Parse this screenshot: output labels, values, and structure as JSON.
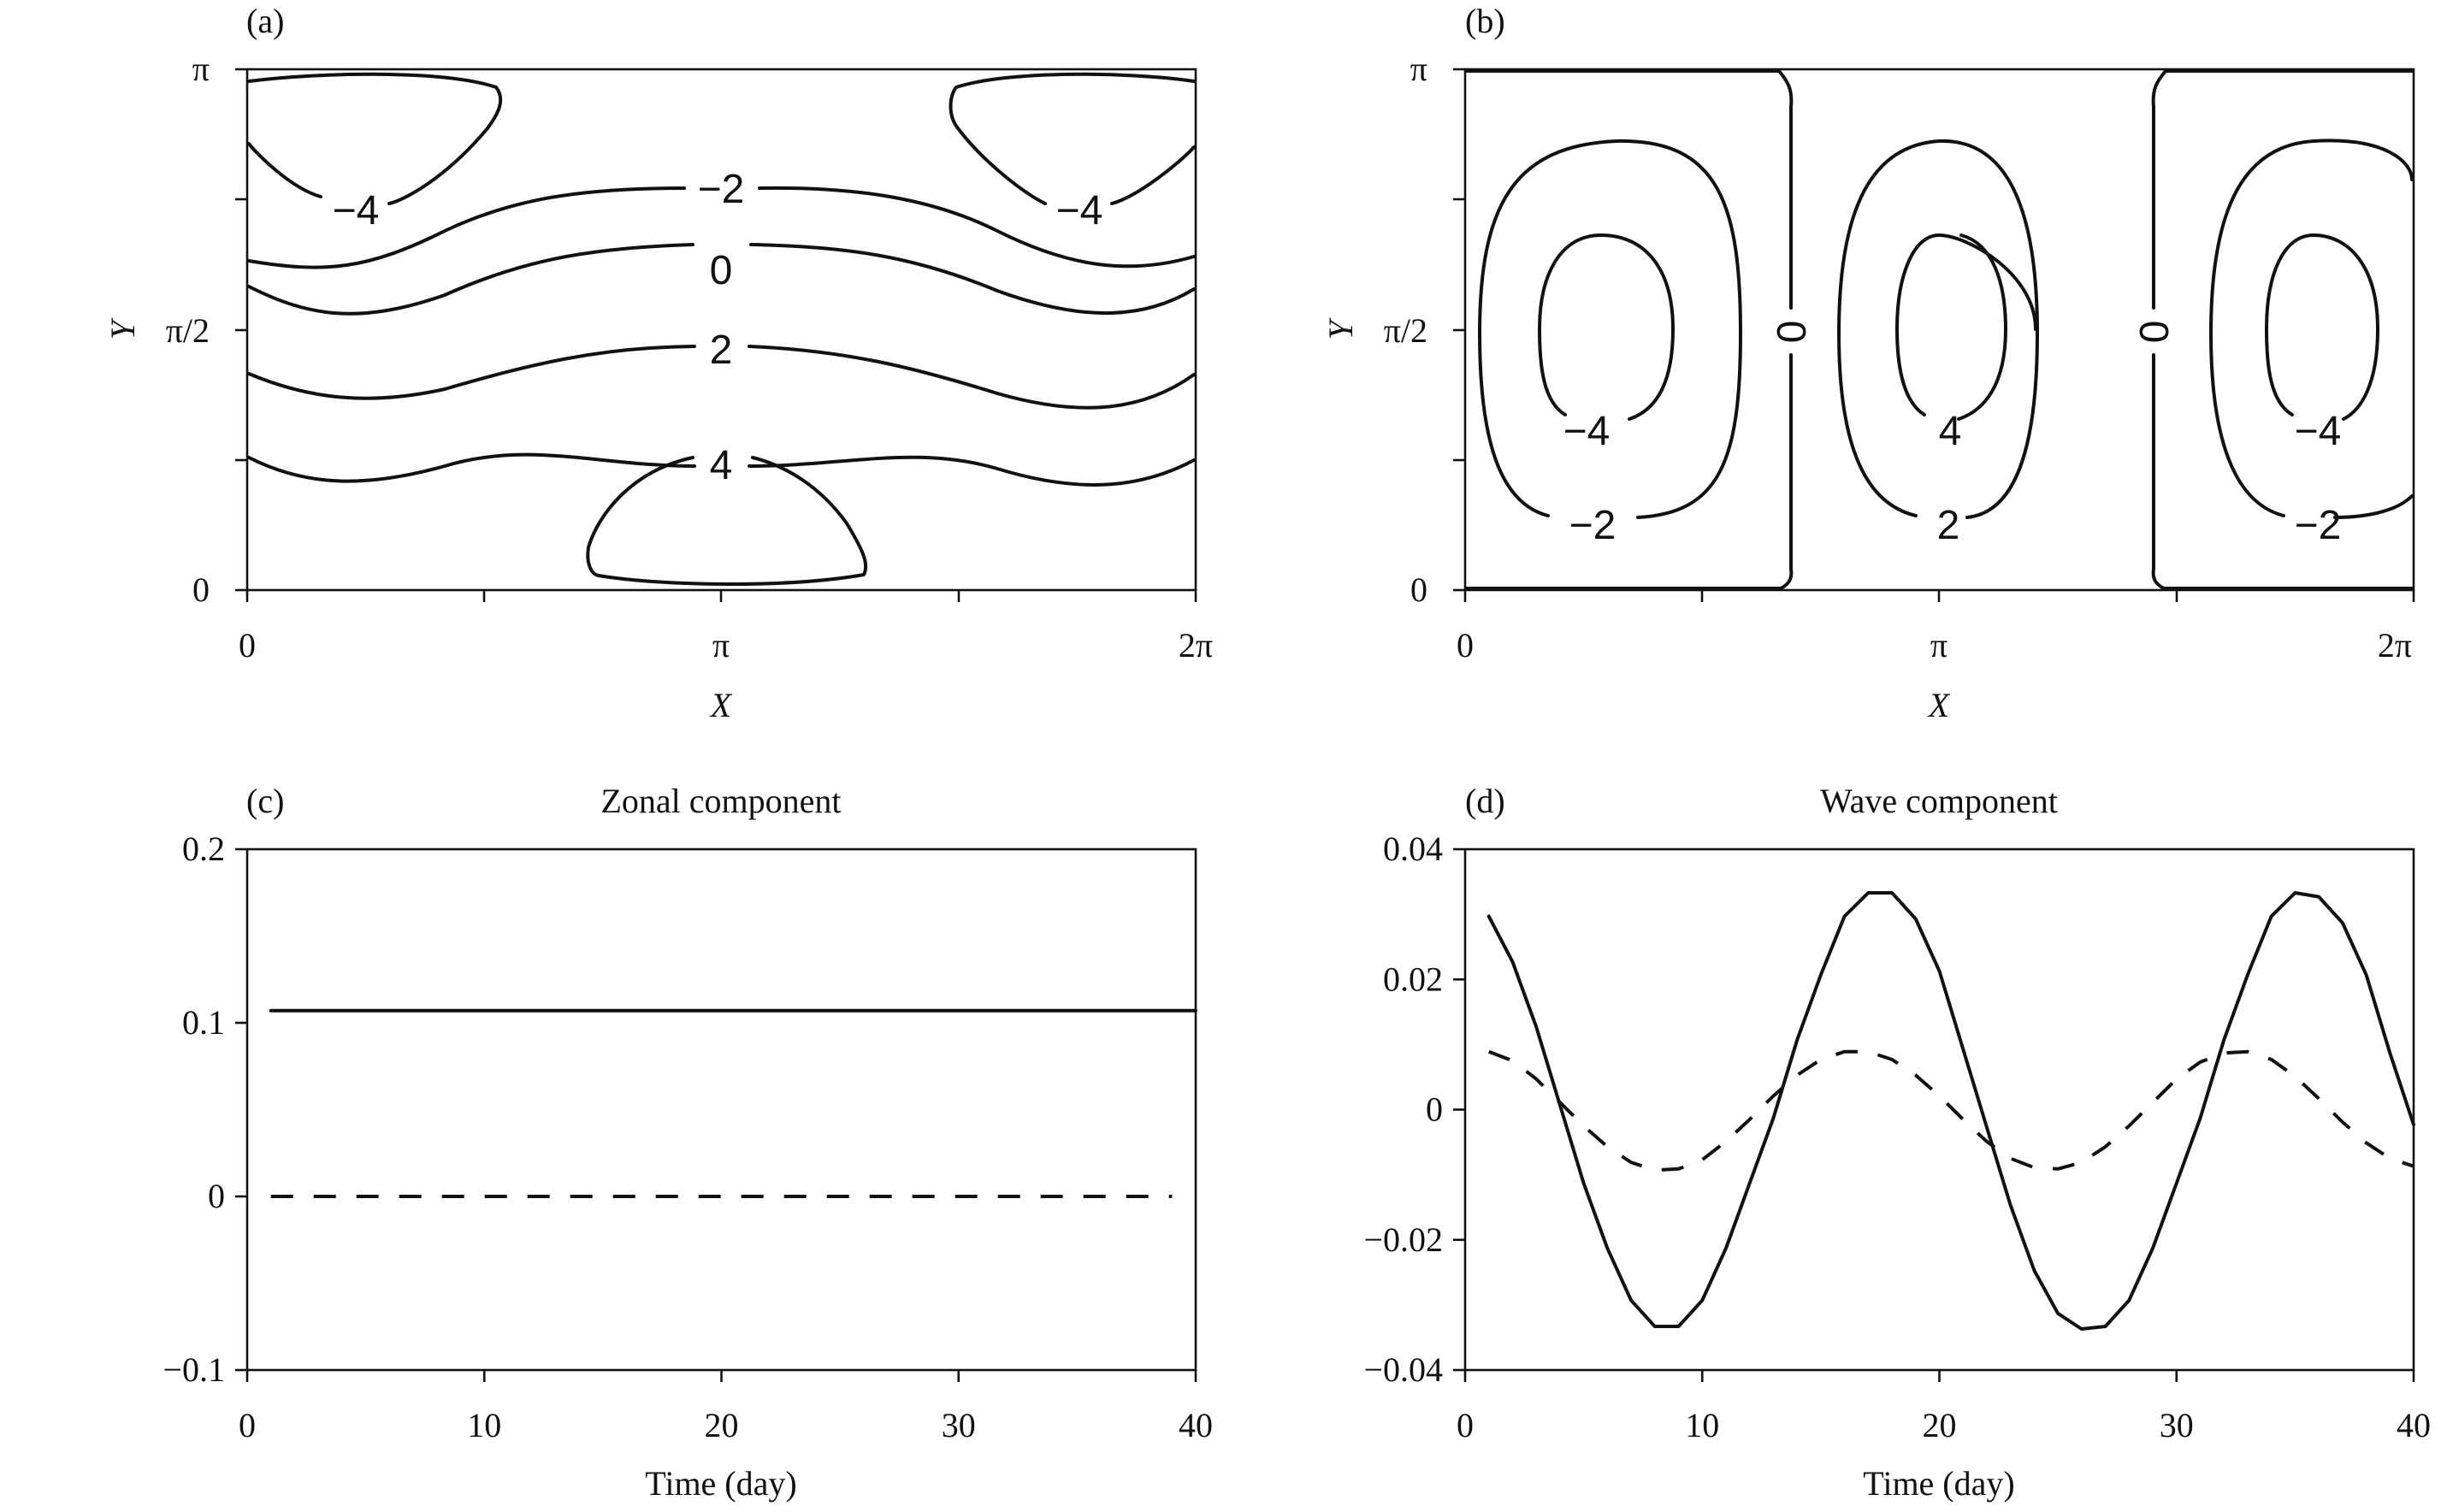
{
  "chart_data": [
    {
      "panel": "(a)",
      "type": "contour",
      "xlabel": "X",
      "ylabel": "Y",
      "xticks": [
        "0",
        "π",
        "2π"
      ],
      "yticks": [
        "0",
        "π/2",
        "π"
      ],
      "xlim": [
        0,
        6.2832
      ],
      "ylim": [
        0,
        3.1416
      ],
      "levels": [
        -4,
        -2,
        0,
        2,
        4
      ],
      "level_labels": [
        "−4",
        "−4",
        "−2",
        "0",
        "2",
        "4"
      ]
    },
    {
      "panel": "(b)",
      "type": "contour",
      "xlabel": "X",
      "ylabel": "Y",
      "xticks": [
        "0",
        "π",
        "2π"
      ],
      "yticks": [
        "0",
        "π/2",
        "π"
      ],
      "xlim": [
        0,
        6.2832
      ],
      "ylim": [
        0,
        3.1416
      ],
      "levels": [
        -4,
        -2,
        0,
        2,
        4
      ],
      "level_labels": [
        "0",
        "0",
        "−4",
        "4",
        "−4",
        "−2",
        "2",
        "−2"
      ]
    },
    {
      "panel": "(c)",
      "type": "line",
      "title": "Zonal component",
      "xlabel": "Time (day)",
      "xticks": [
        "0",
        "10",
        "20",
        "30",
        "40"
      ],
      "yticks": [
        "−0.1",
        "0",
        "0.1",
        "0.2"
      ],
      "xlim": [
        0,
        40
      ],
      "ylim": [
        -0.1,
        0.2
      ],
      "series": [
        {
          "style": "solid",
          "x": [
            1,
            40
          ],
          "values": [
            0.107,
            0.107
          ]
        },
        {
          "style": "dashed",
          "x": [
            1,
            39
          ],
          "values": [
            0,
            0
          ]
        }
      ]
    },
    {
      "panel": "(d)",
      "type": "line",
      "title": "Wave component",
      "xlabel": "Time (day)",
      "xticks": [
        "0",
        "10",
        "20",
        "30",
        "40"
      ],
      "yticks": [
        "−0.04",
        "−0.02",
        "0",
        "0.02",
        "0.04"
      ],
      "xlim": [
        0,
        40
      ],
      "ylim": [
        -0.04,
        0.04
      ],
      "series": [
        {
          "style": "solid",
          "x": [
            1,
            2,
            3,
            4,
            5,
            6,
            7,
            8,
            9,
            10,
            11,
            12,
            13,
            14,
            15,
            16,
            17,
            18,
            19,
            20,
            21,
            22,
            23,
            24,
            25,
            26,
            27,
            28,
            29,
            30,
            31,
            32,
            33,
            34,
            35,
            36,
            37,
            38,
            39,
            40
          ],
          "values": [
            0.0297,
            0.0227,
            0.0127,
            0.0007,
            -0.0113,
            -0.0213,
            -0.0293,
            -0.0333,
            -0.0333,
            -0.0293,
            -0.0213,
            -0.0113,
            -0.0013,
            0.0107,
            0.0207,
            0.0297,
            0.0333,
            0.0333,
            0.0293,
            0.0213,
            0.0093,
            -0.0027,
            -0.0147,
            -0.0247,
            -0.0313,
            -0.0337,
            -0.0333,
            -0.0293,
            -0.0213,
            -0.0113,
            -0.0013,
            0.0107,
            0.0207,
            0.0297,
            0.0333,
            0.0327,
            0.0287,
            0.0207,
            0.0087,
            -0.0023
          ]
        },
        {
          "style": "dashed",
          "x": [
            1,
            2,
            3,
            4,
            5,
            6,
            7,
            8,
            9,
            10,
            11,
            12,
            13,
            14,
            15,
            16,
            17,
            18,
            19,
            20,
            21,
            22,
            23,
            24,
            25,
            26,
            27,
            28,
            29,
            30,
            31,
            32,
            33,
            34,
            35,
            36,
            37,
            38,
            39,
            40
          ],
          "values": [
            0.0089,
            0.0075,
            0.0047,
            0.0011,
            -0.0025,
            -0.0057,
            -0.0081,
            -0.0093,
            -0.0091,
            -0.0077,
            -0.0049,
            -0.0015,
            0.0021,
            0.0053,
            0.0077,
            0.0089,
            0.0089,
            0.0077,
            0.0053,
            0.0021,
            -0.0015,
            -0.0049,
            -0.0075,
            -0.0089,
            -0.0091,
            -0.0081,
            -0.0057,
            -0.0025,
            0.0011,
            0.0047,
            0.0073,
            0.0087,
            0.0089,
            0.0077,
            0.0051,
            0.0017,
            -0.0019,
            -0.0051,
            -0.0075,
            -0.0087
          ]
        }
      ]
    }
  ]
}
